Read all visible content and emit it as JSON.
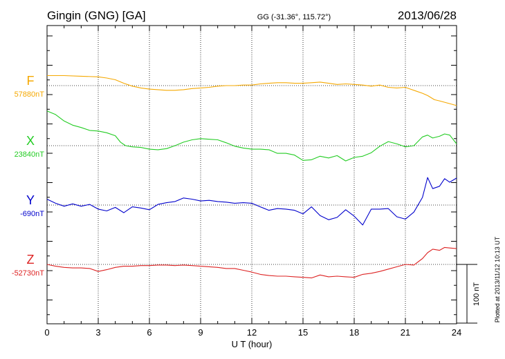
{
  "header": {
    "station": "Gingin (GNG)  [GA]",
    "coords": "GG (-31.36°, 115.72°)",
    "date": "2013/06/28"
  },
  "footer": {
    "plotted": "Plotted at 2013/11/12 10:13 UT"
  },
  "scale_bar": {
    "label": "100 nT",
    "value_nT": 100
  },
  "chart_data": {
    "type": "line",
    "title": "",
    "xlabel": "U T (hour)",
    "ylabel": "",
    "xlim": [
      0,
      24
    ],
    "xticks": [
      0,
      3,
      6,
      9,
      12,
      15,
      18,
      21,
      24
    ],
    "xtick_labels": [
      "0",
      "3",
      "6",
      "9",
      "12",
      "15",
      "18",
      "21",
      "24"
    ],
    "grid": true,
    "units": "nT",
    "series": [
      {
        "name": "F",
        "baseline_label": "57880nT",
        "baseline_nT": 57880,
        "color": "#f5a800",
        "x": [
          0,
          1,
          2,
          3,
          3.5,
          4,
          4.5,
          5,
          5.5,
          6,
          6.5,
          7,
          7.5,
          8,
          8.5,
          9,
          9.5,
          10,
          10.5,
          11,
          11.5,
          12,
          12.5,
          13,
          13.5,
          14,
          14.5,
          15,
          15.5,
          16,
          16.5,
          17,
          17.5,
          18,
          18.5,
          19,
          19.5,
          20,
          20.5,
          21,
          21.3,
          21.6,
          22,
          22.3,
          22.7,
          23,
          23.5,
          24
        ],
        "y": [
          57897,
          57897,
          57896,
          57895,
          57893,
          57890,
          57884,
          57879,
          57876,
          57874,
          57873,
          57872,
          57872,
          57873,
          57875,
          57876,
          57877,
          57879,
          57880,
          57880,
          57881,
          57881,
          57883,
          57884,
          57885,
          57885,
          57884,
          57884,
          57885,
          57886,
          57884,
          57882,
          57883,
          57882,
          57881,
          57879,
          57881,
          57877,
          57876,
          57877,
          57874,
          57871,
          57867,
          57863,
          57856,
          57854,
          57850,
          57846
        ]
      },
      {
        "name": "X",
        "baseline_label": "23840nT",
        "baseline_nT": 23840,
        "color": "#22cc22",
        "x": [
          0,
          0.5,
          1,
          1.5,
          2,
          2.5,
          3,
          3.5,
          4,
          4.3,
          4.6,
          5,
          5.5,
          6,
          6.5,
          7,
          7.5,
          8,
          8.5,
          9,
          9.5,
          10,
          10.5,
          11,
          11.5,
          12,
          12.5,
          13,
          13.5,
          14,
          14.5,
          15,
          15.5,
          16,
          16.5,
          17,
          17.5,
          18,
          18.5,
          19,
          19.5,
          20,
          20.5,
          21,
          21.5,
          22,
          22.3,
          22.6,
          23,
          23.3,
          23.6,
          24
        ],
        "y": [
          23899,
          23893,
          23882,
          23875,
          23871,
          23866,
          23865,
          23862,
          23857,
          23846,
          23840,
          23838,
          23837,
          23834,
          23833,
          23835,
          23840,
          23846,
          23850,
          23852,
          23851,
          23850,
          23845,
          23839,
          23836,
          23834,
          23834,
          23833,
          23827,
          23827,
          23824,
          23815,
          23816,
          23822,
          23819,
          23823,
          23814,
          23820,
          23822,
          23828,
          23839,
          23847,
          23843,
          23838,
          23840,
          23855,
          23858,
          23853,
          23856,
          23860,
          23858,
          23843
        ]
      },
      {
        "name": "Y",
        "baseline_label": "-690nT",
        "baseline_nT": -690,
        "color": "#0000cc",
        "x": [
          0,
          0.5,
          1,
          1.5,
          2,
          2.5,
          3,
          3.5,
          4,
          4.5,
          5,
          5.5,
          6,
          6.5,
          7,
          7.5,
          8,
          8.5,
          9,
          9.5,
          10,
          10.5,
          11,
          11.5,
          12,
          12.5,
          13,
          13.5,
          14,
          14.5,
          15,
          15.5,
          16,
          16.5,
          17,
          17.5,
          18,
          18.5,
          19,
          19.5,
          20,
          20.5,
          21,
          21.5,
          22,
          22.3,
          22.6,
          23,
          23.3,
          23.6,
          24
        ],
        "y": [
          -680,
          -687,
          -692,
          -688,
          -692,
          -689,
          -697,
          -700,
          -694,
          -703,
          -693,
          -695,
          -698,
          -689,
          -686,
          -684,
          -678,
          -680,
          -683,
          -682,
          -684,
          -685,
          -687,
          -686,
          -687,
          -693,
          -699,
          -696,
          -697,
          -699,
          -705,
          -693,
          -708,
          -715,
          -711,
          -698,
          -709,
          -724,
          -697,
          -697,
          -696,
          -710,
          -714,
          -702,
          -677,
          -643,
          -662,
          -658,
          -645,
          -651,
          -644
        ]
      },
      {
        "name": "Z",
        "baseline_label": "-52730nT",
        "baseline_nT": -52730,
        "color": "#dd2222",
        "x": [
          0,
          0.5,
          1,
          1.5,
          2,
          2.5,
          3,
          3.5,
          4,
          4.5,
          5,
          5.5,
          6,
          6.5,
          7,
          7.5,
          8,
          8.5,
          9,
          9.5,
          10,
          10.5,
          11,
          11.5,
          12,
          12.5,
          13,
          13.5,
          14,
          14.5,
          15,
          15.5,
          16,
          16.5,
          17,
          17.5,
          18,
          18.5,
          19,
          19.5,
          20,
          20.5,
          21,
          21.5,
          22,
          22.3,
          22.6,
          23,
          23.3,
          23.6,
          24
        ],
        "y": [
          -52730,
          -52733,
          -52735,
          -52736,
          -52736,
          -52737,
          -52742,
          -52739,
          -52735,
          -52733,
          -52733,
          -52732,
          -52732,
          -52731,
          -52731,
          -52732,
          -52731,
          -52732,
          -52733,
          -52734,
          -52735,
          -52737,
          -52737,
          -52740,
          -52743,
          -52747,
          -52749,
          -52750,
          -52750,
          -52751,
          -52752,
          -52753,
          -52748,
          -52751,
          -52750,
          -52751,
          -52752,
          -52747,
          -52745,
          -52742,
          -52738,
          -52734,
          -52730,
          -52731,
          -52720,
          -52710,
          -52704,
          -52706,
          -52701,
          -52702,
          -52703
        ]
      }
    ]
  }
}
